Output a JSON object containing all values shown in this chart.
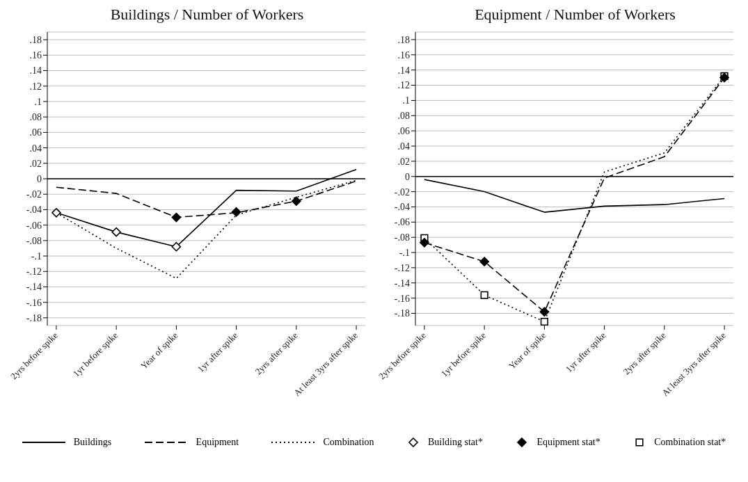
{
  "chart_data": [
    {
      "type": "line",
      "title": "Buildings / Number of Workers",
      "categories": [
        "2yrs before spike",
        "1yr before spike",
        "Year of spike",
        "1yr after spike",
        "2yrs after spike",
        "At least 3yrs after spike"
      ],
      "series": [
        {
          "name": "Buildings",
          "color": "#000000",
          "line_style": "solid",
          "values": [
            -0.044,
            -0.069,
            -0.088,
            -0.015,
            -0.016,
            0.012
          ]
        },
        {
          "name": "Equipment",
          "color": "#000000",
          "line_style": "dashed",
          "values": [
            -0.011,
            -0.019,
            -0.05,
            -0.044,
            -0.029,
            -0.003
          ]
        },
        {
          "name": "Combination",
          "color": "#000000",
          "line_style": "dotted",
          "values": [
            -0.044,
            -0.09,
            -0.129,
            -0.047,
            -0.024,
            -0.002
          ]
        },
        {
          "name": "Building stat*",
          "type": "scatter",
          "marker": "diamond",
          "color": "#ffffff",
          "x": [
            "2yrs before spike",
            "1yr before spike",
            "Year of spike"
          ],
          "values": [
            -0.044,
            -0.069,
            -0.088
          ]
        },
        {
          "name": "Equipment stat*",
          "type": "scatter",
          "marker": "diamond",
          "color": "#000000",
          "x": [
            "Year of spike",
            "1yr after spike",
            "2yrs after spike"
          ],
          "values": [
            -0.05,
            -0.043,
            -0.029
          ]
        }
      ],
      "ylim": [
        -0.19,
        0.19
      ],
      "yticks": [
        {
          "value": -0.18,
          "label": "-.18"
        },
        {
          "value": -0.16,
          "label": "-.16"
        },
        {
          "value": -0.14,
          "label": "-.14"
        },
        {
          "value": -0.12,
          "label": "-.12"
        },
        {
          "value": -0.1,
          "label": "-.1"
        },
        {
          "value": -0.08,
          "label": "-.08"
        },
        {
          "value": -0.06,
          "label": "-.06"
        },
        {
          "value": -0.04,
          "label": "-.04"
        },
        {
          "value": -0.02,
          "label": "-.02"
        },
        0,
        {
          "value": 0.02,
          "label": ".02"
        },
        {
          "value": 0.04,
          "label": ".04"
        },
        {
          "value": 0.06,
          "label": ".06"
        },
        {
          "value": 0.08,
          "label": ".08"
        },
        {
          "value": 0.1,
          "label": ".1"
        },
        {
          "value": 0.12,
          "label": ".12"
        },
        {
          "value": 0.14,
          "label": ".14"
        },
        {
          "value": 0.16,
          "label": ".16"
        },
        {
          "value": 0.18,
          "label": ".18"
        }
      ],
      "grid": "y",
      "legend": "bottom",
      "ref_lines": [
        {
          "axis": "y",
          "value": 0,
          "color": "#000000"
        }
      ]
    },
    {
      "type": "line",
      "title": "Equipment / Number of Workers",
      "categories": [
        "2yrs before spike",
        "1yr before spike",
        "Year of spike",
        "1yr after spike",
        "2yrs after spike",
        "At least 3yrs after spike"
      ],
      "series": [
        {
          "name": "Buildings",
          "color": "#000000",
          "line_style": "solid",
          "values": [
            -0.004,
            -0.02,
            -0.047,
            -0.039,
            -0.037,
            -0.029
          ]
        },
        {
          "name": "Equipment",
          "color": "#000000",
          "line_style": "dashed",
          "values": [
            -0.087,
            -0.112,
            -0.178,
            -0.002,
            0.026,
            0.13
          ]
        },
        {
          "name": "Combination",
          "color": "#000000",
          "line_style": "dotted",
          "values": [
            -0.081,
            -0.156,
            -0.191,
            0.006,
            0.031,
            0.132
          ]
        },
        {
          "name": "Combination stat*",
          "type": "scatter",
          "marker": "square",
          "color": "#ffffff",
          "x": [
            "2yrs before spike",
            "1yr before spike",
            "Year of spike",
            "At least 3yrs after spike"
          ],
          "values": [
            -0.081,
            -0.156,
            -0.191,
            0.132
          ]
        },
        {
          "name": "Equipment stat*",
          "type": "scatter",
          "marker": "diamond",
          "color": "#000000",
          "x": [
            "2yrs before spike",
            "1yr before spike",
            "Year of spike",
            "At least 3yrs after spike"
          ],
          "values": [
            -0.087,
            -0.112,
            -0.178,
            0.13
          ]
        }
      ],
      "ylim": [
        -0.196,
        0.19
      ],
      "yticks": [
        {
          "value": -0.18,
          "label": "-.18"
        },
        {
          "value": -0.16,
          "label": "-.16"
        },
        {
          "value": -0.14,
          "label": "-.14"
        },
        {
          "value": -0.12,
          "label": "-.12"
        },
        {
          "value": -0.1,
          "label": "-.1"
        },
        {
          "value": -0.08,
          "label": "-.08"
        },
        {
          "value": -0.06,
          "label": "-.06"
        },
        {
          "value": -0.04,
          "label": "-.04"
        },
        {
          "value": -0.02,
          "label": "-.02"
        },
        0,
        {
          "value": 0.02,
          "label": ".02"
        },
        {
          "value": 0.04,
          "label": ".04"
        },
        {
          "value": 0.06,
          "label": ".06"
        },
        {
          "value": 0.08,
          "label": ".08"
        },
        {
          "value": 0.1,
          "label": ".1"
        },
        {
          "value": 0.12,
          "label": ".12"
        },
        {
          "value": 0.14,
          "label": ".14"
        },
        {
          "value": 0.16,
          "label": ".16"
        },
        {
          "value": 0.18,
          "label": ".18"
        }
      ],
      "grid": "y",
      "legend": "bottom",
      "ref_lines": [
        {
          "axis": "y",
          "value": 0,
          "color": "#000000"
        }
      ]
    }
  ]
}
